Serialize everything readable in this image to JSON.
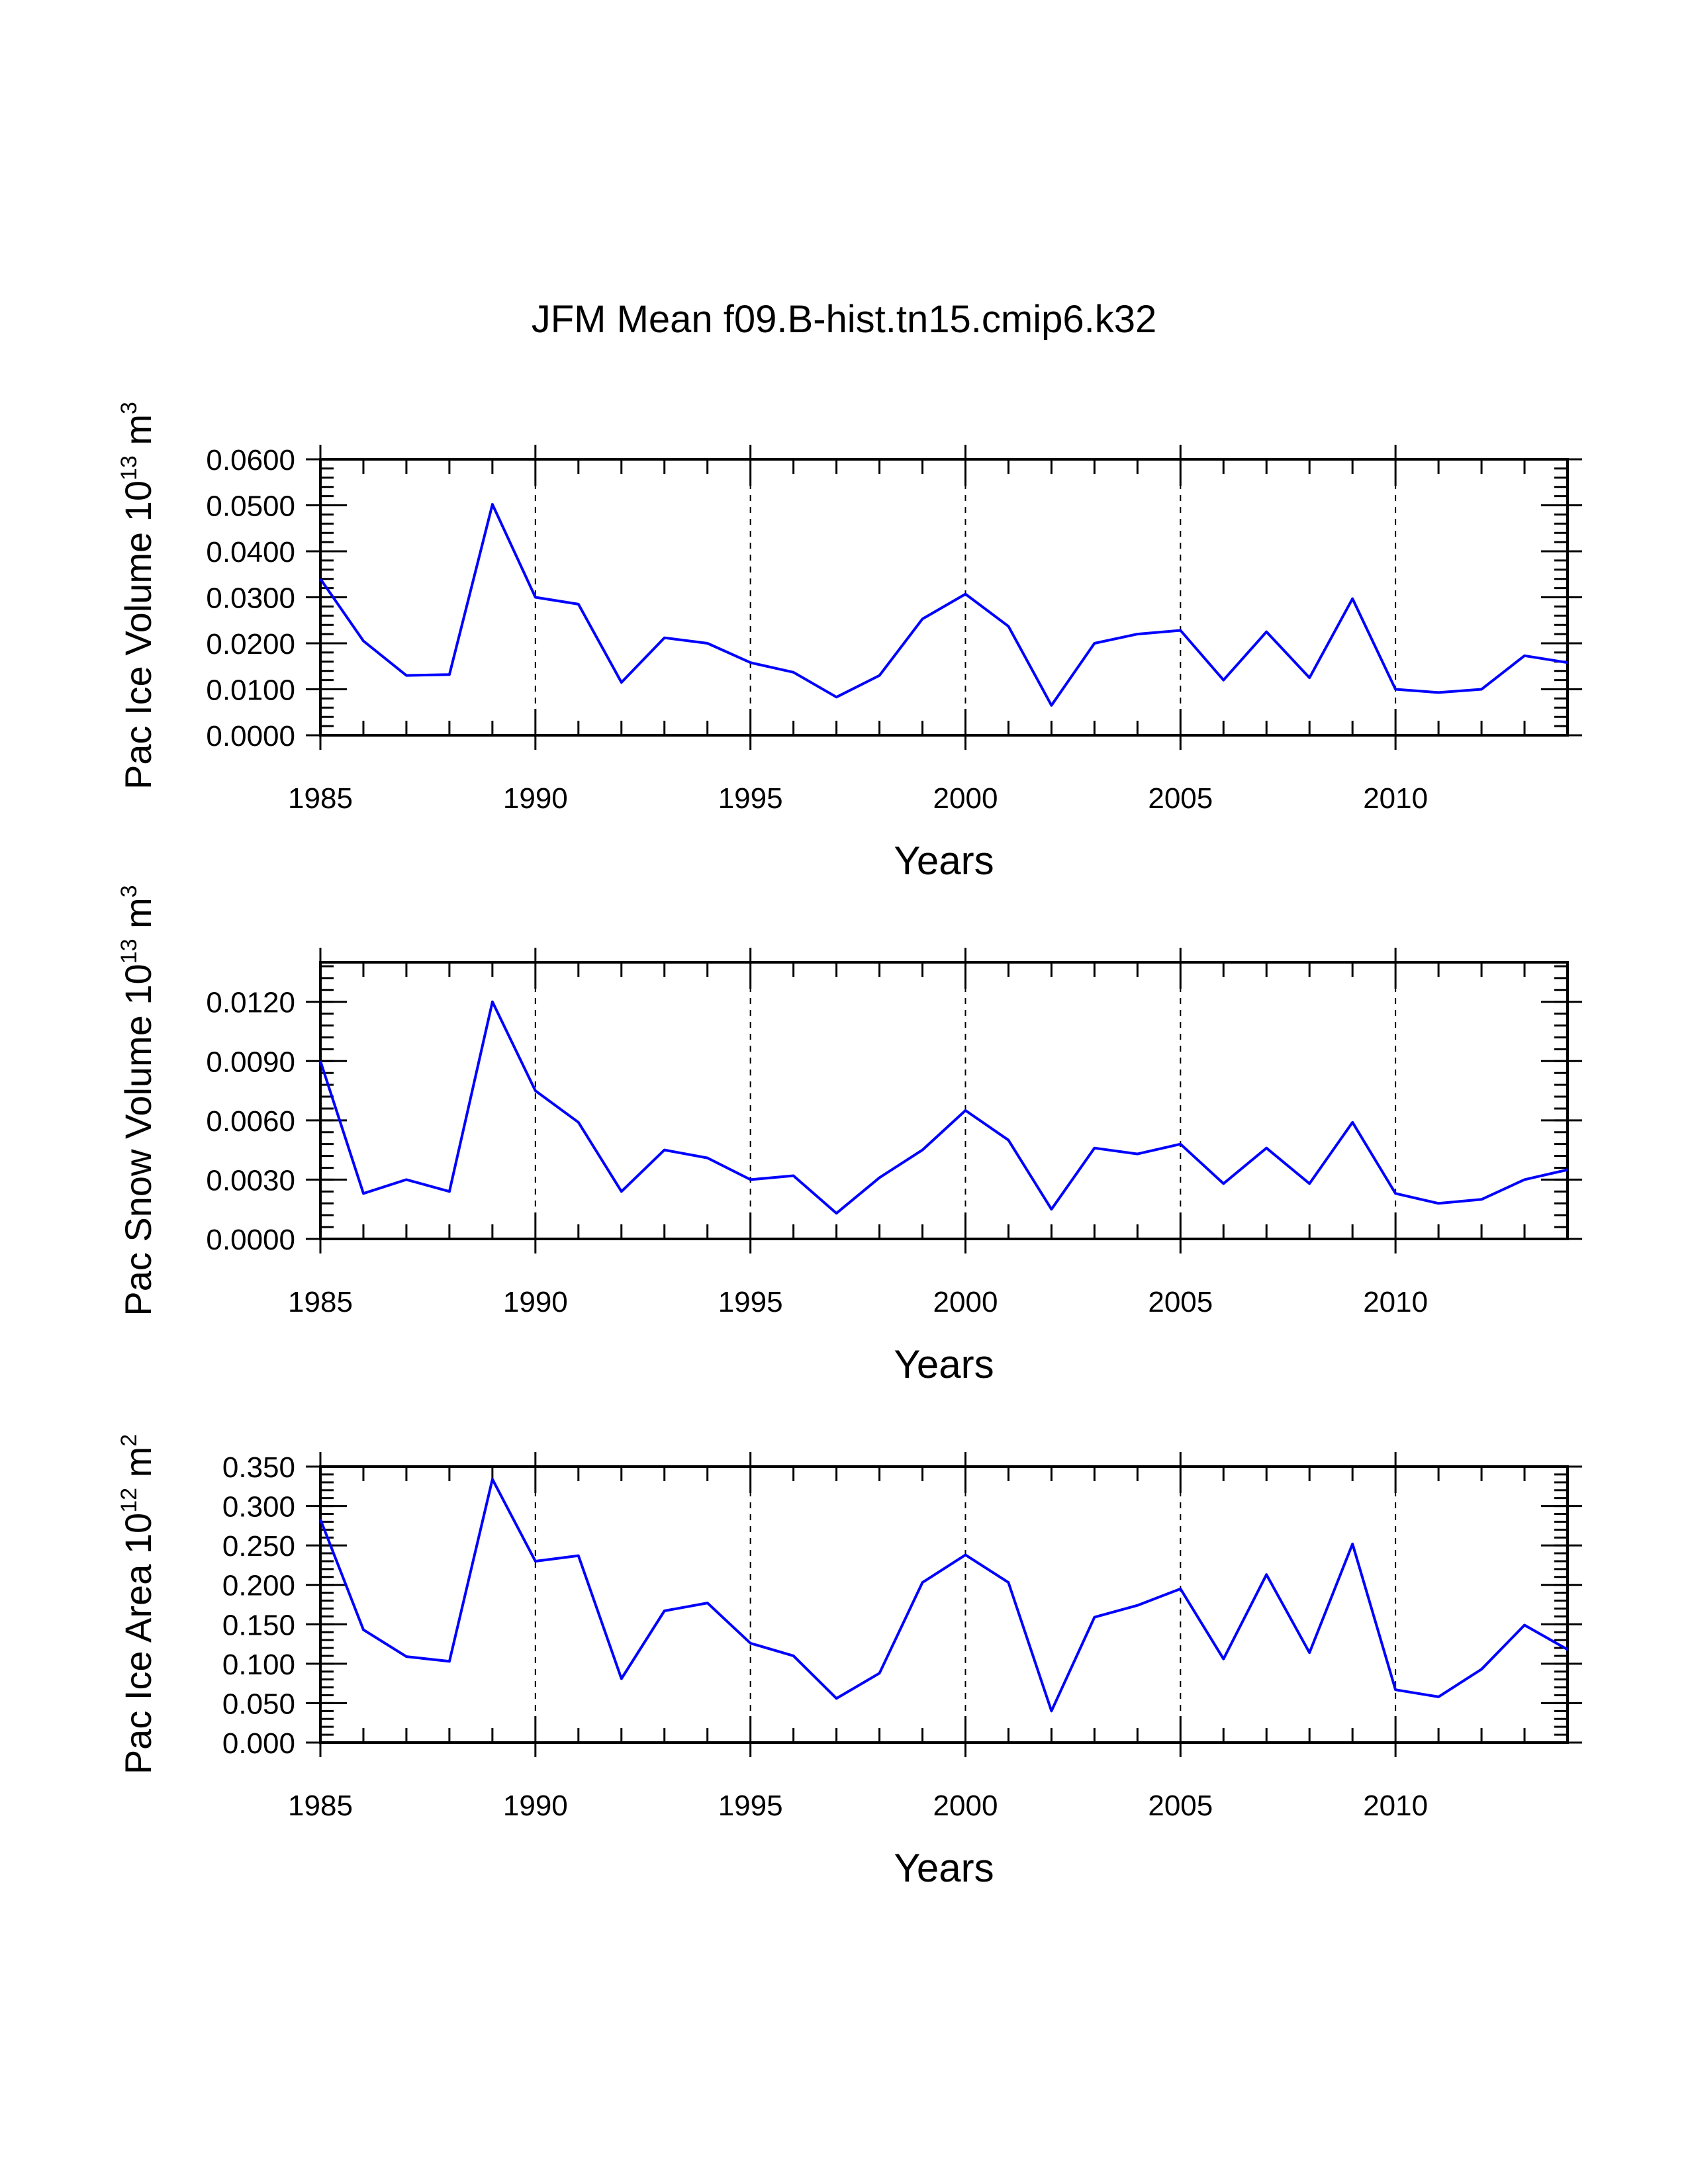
{
  "figure_title": "JFM Mean f09.B-hist.tn15.cmip6.k32",
  "colors": {
    "series": "#0000ff",
    "axes": "#000000",
    "background": "#ffffff"
  },
  "chart_data": [
    {
      "type": "line",
      "title": "JFM Mean f09.B-hist.tn15.cmip6.k32",
      "xlabel": "Years",
      "ylabel_main": "Pac Ice Volume 10",
      "ylabel_sup": "13",
      "ylabel_unit": " m",
      "ylabel_unit_sup": "3",
      "x": [
        1985,
        1986,
        1987,
        1988,
        1989,
        1990,
        1991,
        1992,
        1993,
        1994,
        1995,
        1996,
        1997,
        1998,
        1999,
        2000,
        2001,
        2002,
        2003,
        2004,
        2005,
        2006,
        2007,
        2008,
        2009,
        2010,
        2011,
        2012,
        2013,
        2014
      ],
      "values": [
        0.034,
        0.0205,
        0.013,
        0.0132,
        0.0502,
        0.03,
        0.0285,
        0.0115,
        0.0212,
        0.02,
        0.0158,
        0.0137,
        0.0083,
        0.013,
        0.0253,
        0.0307,
        0.0237,
        0.0065,
        0.02,
        0.022,
        0.0228,
        0.012,
        0.0225,
        0.0125,
        0.0297,
        0.01,
        0.0093,
        0.01,
        0.0173,
        0.0158
      ],
      "xlim": [
        1985,
        2014
      ],
      "ylim": [
        0,
        0.06
      ],
      "xticks": [
        "1985",
        "1990",
        "1995",
        "2000",
        "2005",
        "2010"
      ],
      "yticks": [
        "0.0000",
        "0.0100",
        "0.0200",
        "0.0300",
        "0.0400",
        "0.0500",
        "0.0600"
      ],
      "grid": "dashed vertical at major x ticks"
    },
    {
      "type": "line",
      "xlabel": "Years",
      "ylabel_main": "Pac Snow Volume 10",
      "ylabel_sup": "13",
      "ylabel_unit": " m",
      "ylabel_unit_sup": "3",
      "x": [
        1985,
        1986,
        1987,
        1988,
        1989,
        1990,
        1991,
        1992,
        1993,
        1994,
        1995,
        1996,
        1997,
        1998,
        1999,
        2000,
        2001,
        2002,
        2003,
        2004,
        2005,
        2006,
        2007,
        2008,
        2009,
        2010,
        2011,
        2012,
        2013,
        2014
      ],
      "values": [
        0.009,
        0.0023,
        0.003,
        0.0024,
        0.012,
        0.0075,
        0.0059,
        0.0024,
        0.0045,
        0.0041,
        0.003,
        0.0032,
        0.0013,
        0.0031,
        0.0045,
        0.0065,
        0.005,
        0.0015,
        0.0046,
        0.0043,
        0.0048,
        0.0028,
        0.0046,
        0.0028,
        0.0059,
        0.0023,
        0.0018,
        0.002,
        0.003,
        0.0035
      ],
      "xlim": [
        1985,
        2014
      ],
      "ylim": [
        0,
        0.014
      ],
      "xticks": [
        "1985",
        "1990",
        "1995",
        "2000",
        "2005",
        "2010"
      ],
      "yticks": [
        "0.0000",
        "0.0030",
        "0.0060",
        "0.0090",
        "0.0120"
      ],
      "grid": "dashed vertical at major x ticks"
    },
    {
      "type": "line",
      "xlabel": "Years",
      "ylabel_main": "Pac Ice Area 10",
      "ylabel_sup": "12",
      "ylabel_unit": " m",
      "ylabel_unit_sup": "2",
      "x": [
        1985,
        1986,
        1987,
        1988,
        1989,
        1990,
        1991,
        1992,
        1993,
        1994,
        1995,
        1996,
        1997,
        1998,
        1999,
        2000,
        2001,
        2002,
        2003,
        2004,
        2005,
        2006,
        2007,
        2008,
        2009,
        2010,
        2011,
        2012,
        2013,
        2014
      ],
      "values": [
        0.283,
        0.143,
        0.109,
        0.103,
        0.334,
        0.23,
        0.237,
        0.081,
        0.167,
        0.177,
        0.126,
        0.11,
        0.056,
        0.088,
        0.203,
        0.238,
        0.203,
        0.04,
        0.159,
        0.174,
        0.195,
        0.106,
        0.213,
        0.114,
        0.252,
        0.067,
        0.058,
        0.093,
        0.149,
        0.118
      ],
      "xlim": [
        1985,
        2014
      ],
      "ylim": [
        0,
        0.35
      ],
      "xticks": [
        "1985",
        "1990",
        "1995",
        "2000",
        "2005",
        "2010"
      ],
      "yticks": [
        "0.000",
        "0.050",
        "0.100",
        "0.150",
        "0.200",
        "0.250",
        "0.300",
        "0.350"
      ],
      "grid": "dashed vertical at major x ticks"
    }
  ]
}
